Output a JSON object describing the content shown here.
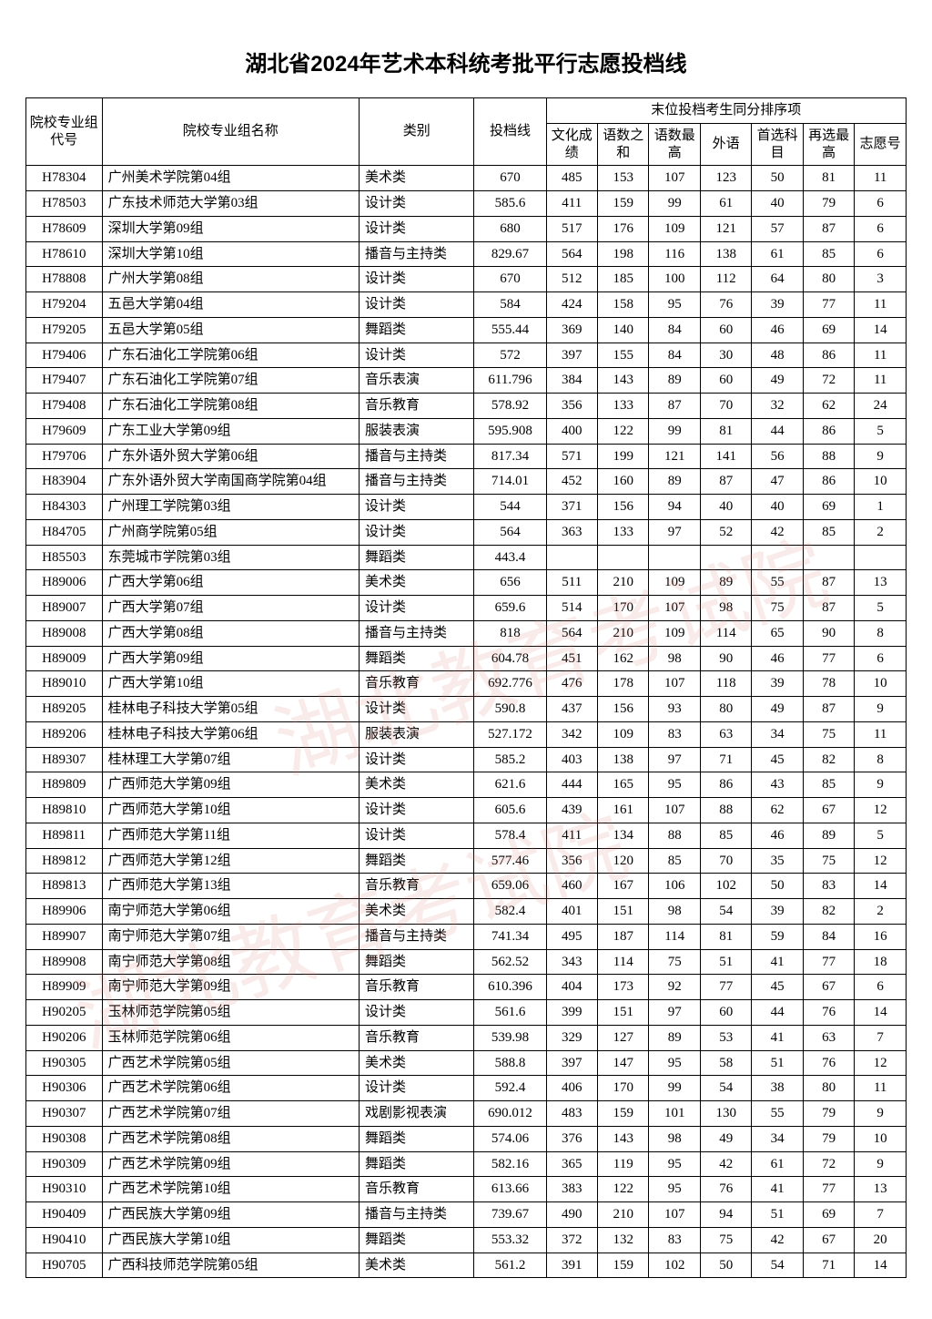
{
  "title": "湖北省2024年艺术本科统考批平行志愿投档线",
  "headers": {
    "code": "院校专业组代号",
    "name": "院校专业组名称",
    "category": "类别",
    "score": "投档线",
    "tiebreak_group": "末位投档考生同分排序项",
    "culture": "文化成绩",
    "lm_sum": "语数之和",
    "lm_max": "语数最高",
    "foreign": "外语",
    "first_sub": "首选科目",
    "re_max": "再选最高",
    "wish_no": "志愿号"
  },
  "rows": [
    {
      "code": "H78304",
      "name": "广州美术学院第04组",
      "cat": "美术类",
      "score": "670",
      "v": [
        "485",
        "153",
        "107",
        "123",
        "50",
        "81",
        "11"
      ]
    },
    {
      "code": "H78503",
      "name": "广东技术师范大学第03组",
      "cat": "设计类",
      "score": "585.6",
      "v": [
        "411",
        "159",
        "99",
        "61",
        "40",
        "79",
        "6"
      ]
    },
    {
      "code": "H78609",
      "name": "深圳大学第09组",
      "cat": "设计类",
      "score": "680",
      "v": [
        "517",
        "176",
        "109",
        "121",
        "57",
        "87",
        "6"
      ]
    },
    {
      "code": "H78610",
      "name": "深圳大学第10组",
      "cat": "播音与主持类",
      "score": "829.67",
      "v": [
        "564",
        "198",
        "116",
        "138",
        "61",
        "85",
        "6"
      ]
    },
    {
      "code": "H78808",
      "name": "广州大学第08组",
      "cat": "设计类",
      "score": "670",
      "v": [
        "512",
        "185",
        "100",
        "112",
        "64",
        "80",
        "3"
      ]
    },
    {
      "code": "H79204",
      "name": "五邑大学第04组",
      "cat": "设计类",
      "score": "584",
      "v": [
        "424",
        "158",
        "95",
        "76",
        "39",
        "77",
        "11"
      ]
    },
    {
      "code": "H79205",
      "name": "五邑大学第05组",
      "cat": "舞蹈类",
      "score": "555.44",
      "v": [
        "369",
        "140",
        "84",
        "60",
        "46",
        "69",
        "14"
      ]
    },
    {
      "code": "H79406",
      "name": "广东石油化工学院第06组",
      "cat": "设计类",
      "score": "572",
      "v": [
        "397",
        "155",
        "84",
        "30",
        "48",
        "86",
        "11"
      ]
    },
    {
      "code": "H79407",
      "name": "广东石油化工学院第07组",
      "cat": "音乐表演",
      "score": "611.796",
      "v": [
        "384",
        "143",
        "89",
        "60",
        "49",
        "72",
        "11"
      ]
    },
    {
      "code": "H79408",
      "name": "广东石油化工学院第08组",
      "cat": "音乐教育",
      "score": "578.92",
      "v": [
        "356",
        "133",
        "87",
        "70",
        "32",
        "62",
        "24"
      ]
    },
    {
      "code": "H79609",
      "name": "广东工业大学第09组",
      "cat": "服装表演",
      "score": "595.908",
      "v": [
        "400",
        "122",
        "99",
        "81",
        "44",
        "86",
        "5"
      ]
    },
    {
      "code": "H79706",
      "name": "广东外语外贸大学第06组",
      "cat": "播音与主持类",
      "score": "817.34",
      "v": [
        "571",
        "199",
        "121",
        "141",
        "56",
        "88",
        "9"
      ]
    },
    {
      "code": "H83904",
      "name": "广东外语外贸大学南国商学院第04组",
      "cat": "播音与主持类",
      "score": "714.01",
      "v": [
        "452",
        "160",
        "89",
        "87",
        "47",
        "86",
        "10"
      ]
    },
    {
      "code": "H84303",
      "name": "广州理工学院第03组",
      "cat": "设计类",
      "score": "544",
      "v": [
        "371",
        "156",
        "94",
        "40",
        "40",
        "69",
        "1"
      ]
    },
    {
      "code": "H84705",
      "name": "广州商学院第05组",
      "cat": "设计类",
      "score": "564",
      "v": [
        "363",
        "133",
        "97",
        "52",
        "42",
        "85",
        "2"
      ]
    },
    {
      "code": "H85503",
      "name": "东莞城市学院第03组",
      "cat": "舞蹈类",
      "score": "443.4",
      "v": [
        "",
        "",
        "",
        "",
        "",
        "",
        ""
      ]
    },
    {
      "code": "H89006",
      "name": "广西大学第06组",
      "cat": "美术类",
      "score": "656",
      "v": [
        "511",
        "210",
        "109",
        "89",
        "55",
        "87",
        "13"
      ]
    },
    {
      "code": "H89007",
      "name": "广西大学第07组",
      "cat": "设计类",
      "score": "659.6",
      "v": [
        "514",
        "170",
        "107",
        "98",
        "75",
        "87",
        "5"
      ]
    },
    {
      "code": "H89008",
      "name": "广西大学第08组",
      "cat": "播音与主持类",
      "score": "818",
      "v": [
        "564",
        "210",
        "109",
        "114",
        "65",
        "90",
        "8"
      ]
    },
    {
      "code": "H89009",
      "name": "广西大学第09组",
      "cat": "舞蹈类",
      "score": "604.78",
      "v": [
        "451",
        "162",
        "98",
        "90",
        "46",
        "77",
        "6"
      ]
    },
    {
      "code": "H89010",
      "name": "广西大学第10组",
      "cat": "音乐教育",
      "score": "692.776",
      "v": [
        "476",
        "178",
        "107",
        "118",
        "39",
        "78",
        "10"
      ]
    },
    {
      "code": "H89205",
      "name": "桂林电子科技大学第05组",
      "cat": "设计类",
      "score": "590.8",
      "v": [
        "437",
        "156",
        "93",
        "80",
        "49",
        "87",
        "9"
      ]
    },
    {
      "code": "H89206",
      "name": "桂林电子科技大学第06组",
      "cat": "服装表演",
      "score": "527.172",
      "v": [
        "342",
        "109",
        "83",
        "63",
        "34",
        "75",
        "11"
      ]
    },
    {
      "code": "H89307",
      "name": "桂林理工大学第07组",
      "cat": "设计类",
      "score": "585.2",
      "v": [
        "403",
        "138",
        "97",
        "71",
        "45",
        "82",
        "8"
      ]
    },
    {
      "code": "H89809",
      "name": "广西师范大学第09组",
      "cat": "美术类",
      "score": "621.6",
      "v": [
        "444",
        "165",
        "95",
        "86",
        "43",
        "85",
        "9"
      ]
    },
    {
      "code": "H89810",
      "name": "广西师范大学第10组",
      "cat": "设计类",
      "score": "605.6",
      "v": [
        "439",
        "161",
        "107",
        "88",
        "62",
        "67",
        "12"
      ]
    },
    {
      "code": "H89811",
      "name": "广西师范大学第11组",
      "cat": "设计类",
      "score": "578.4",
      "v": [
        "411",
        "134",
        "88",
        "85",
        "46",
        "89",
        "5"
      ]
    },
    {
      "code": "H89812",
      "name": "广西师范大学第12组",
      "cat": "舞蹈类",
      "score": "577.46",
      "v": [
        "356",
        "120",
        "85",
        "70",
        "35",
        "75",
        "12"
      ]
    },
    {
      "code": "H89813",
      "name": "广西师范大学第13组",
      "cat": "音乐教育",
      "score": "659.06",
      "v": [
        "460",
        "167",
        "106",
        "102",
        "50",
        "83",
        "14"
      ]
    },
    {
      "code": "H89906",
      "name": "南宁师范大学第06组",
      "cat": "美术类",
      "score": "582.4",
      "v": [
        "401",
        "151",
        "98",
        "54",
        "39",
        "82",
        "2"
      ]
    },
    {
      "code": "H89907",
      "name": "南宁师范大学第07组",
      "cat": "播音与主持类",
      "score": "741.34",
      "v": [
        "495",
        "187",
        "114",
        "81",
        "59",
        "84",
        "16"
      ]
    },
    {
      "code": "H89908",
      "name": "南宁师范大学第08组",
      "cat": "舞蹈类",
      "score": "562.52",
      "v": [
        "343",
        "114",
        "75",
        "51",
        "41",
        "77",
        "18"
      ]
    },
    {
      "code": "H89909",
      "name": "南宁师范大学第09组",
      "cat": "音乐教育",
      "score": "610.396",
      "v": [
        "404",
        "173",
        "92",
        "77",
        "45",
        "67",
        "6"
      ]
    },
    {
      "code": "H90205",
      "name": "玉林师范学院第05组",
      "cat": "设计类",
      "score": "561.6",
      "v": [
        "399",
        "151",
        "97",
        "60",
        "44",
        "76",
        "14"
      ]
    },
    {
      "code": "H90206",
      "name": "玉林师范学院第06组",
      "cat": "音乐教育",
      "score": "539.98",
      "v": [
        "329",
        "127",
        "89",
        "53",
        "41",
        "63",
        "7"
      ]
    },
    {
      "code": "H90305",
      "name": "广西艺术学院第05组",
      "cat": "美术类",
      "score": "588.8",
      "v": [
        "397",
        "147",
        "95",
        "58",
        "51",
        "76",
        "12"
      ]
    },
    {
      "code": "H90306",
      "name": "广西艺术学院第06组",
      "cat": "设计类",
      "score": "592.4",
      "v": [
        "406",
        "170",
        "99",
        "54",
        "38",
        "80",
        "11"
      ]
    },
    {
      "code": "H90307",
      "name": "广西艺术学院第07组",
      "cat": "戏剧影视表演",
      "score": "690.012",
      "v": [
        "483",
        "159",
        "101",
        "130",
        "55",
        "79",
        "9"
      ]
    },
    {
      "code": "H90308",
      "name": "广西艺术学院第08组",
      "cat": "舞蹈类",
      "score": "574.06",
      "v": [
        "376",
        "143",
        "98",
        "49",
        "34",
        "79",
        "10"
      ]
    },
    {
      "code": "H90309",
      "name": "广西艺术学院第09组",
      "cat": "舞蹈类",
      "score": "582.16",
      "v": [
        "365",
        "119",
        "95",
        "42",
        "61",
        "72",
        "9"
      ]
    },
    {
      "code": "H90310",
      "name": "广西艺术学院第10组",
      "cat": "音乐教育",
      "score": "613.66",
      "v": [
        "383",
        "122",
        "95",
        "76",
        "41",
        "77",
        "13"
      ]
    },
    {
      "code": "H90409",
      "name": "广西民族大学第09组",
      "cat": "播音与主持类",
      "score": "739.67",
      "v": [
        "490",
        "210",
        "107",
        "94",
        "51",
        "69",
        "7"
      ]
    },
    {
      "code": "H90410",
      "name": "广西民族大学第10组",
      "cat": "舞蹈类",
      "score": "553.32",
      "v": [
        "372",
        "132",
        "83",
        "75",
        "42",
        "67",
        "20"
      ]
    },
    {
      "code": "H90705",
      "name": "广西科技师范学院第05组",
      "cat": "美术类",
      "score": "561.2",
      "v": [
        "391",
        "159",
        "102",
        "50",
        "54",
        "71",
        "14"
      ]
    }
  ]
}
